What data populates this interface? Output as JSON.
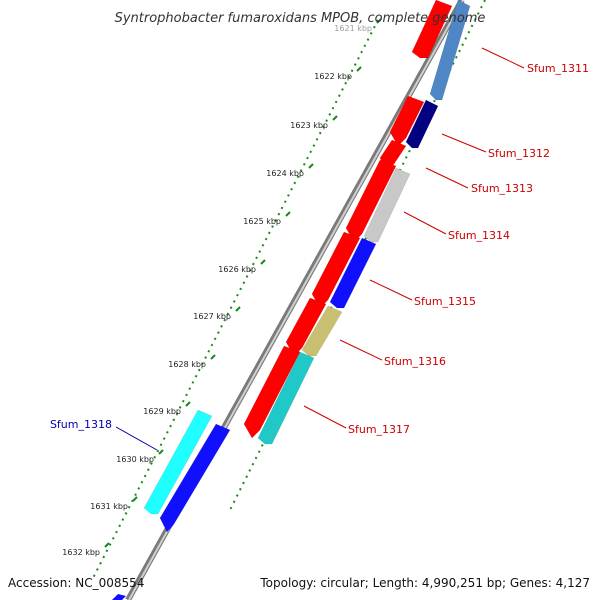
{
  "title": "Syntrophobacter fumaroxidans MPOB, complete genome",
  "footer": {
    "accession": "Accession: NC_008554",
    "stats": "Topology: circular; Length: 4,990,251 bp; Genes: 4,127"
  },
  "ticks": [
    {
      "label": "1621 kbp"
    },
    {
      "label": "1622 kbp"
    },
    {
      "label": "1623 kbp"
    },
    {
      "label": "1624 kbp"
    },
    {
      "label": "1625 kbp"
    },
    {
      "label": "1626 kbp"
    },
    {
      "label": "1627 kbp"
    },
    {
      "label": "1628 kbp"
    },
    {
      "label": "1629 kbp"
    },
    {
      "label": "1630 kbp"
    },
    {
      "label": "1631 kbp"
    },
    {
      "label": "1632 kbp"
    }
  ],
  "genes": [
    {
      "label": "Sfum_1311",
      "color": "#cc0000"
    },
    {
      "label": "Sfum_1312",
      "color": "#cc0000"
    },
    {
      "label": "Sfum_1313",
      "color": "#cc0000"
    },
    {
      "label": "Sfum_1314",
      "color": "#cc0000"
    },
    {
      "label": "Sfum_1315",
      "color": "#cc0000"
    },
    {
      "label": "Sfum_1316",
      "color": "#cc0000"
    },
    {
      "label": "Sfum_1317",
      "color": "#cc0000"
    },
    {
      "label": "Sfum_1318",
      "color": "#0000aa"
    }
  ],
  "colors": {
    "cds_forward": "#ff0000",
    "steel_blue": "#4f86c6",
    "navy": "#000080",
    "grey": "#c8c8c8",
    "blue": "#1010ff",
    "khaki": "#c8c070",
    "teal": "#20c8c8",
    "cyan": "#20ffff",
    "backbone": "#808080",
    "tick_green": "#1a8a1a"
  }
}
